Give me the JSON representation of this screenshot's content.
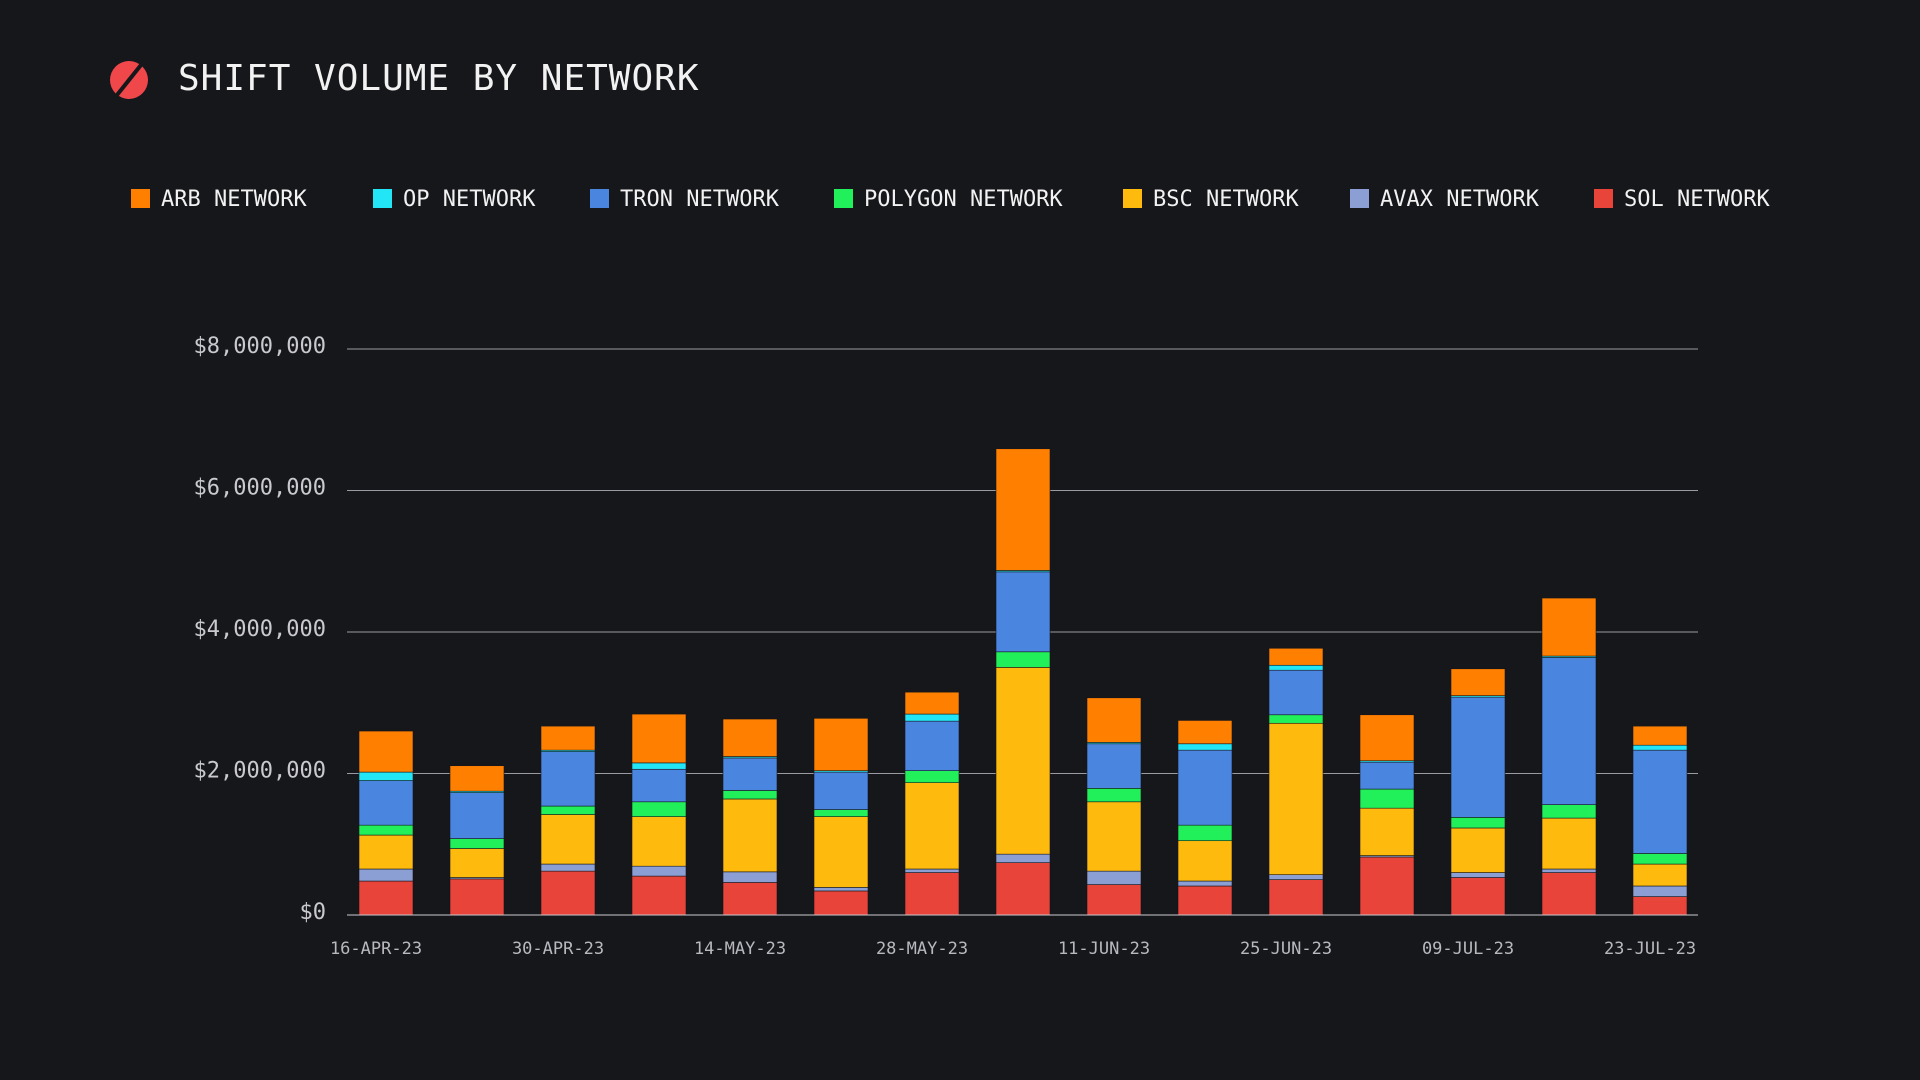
{
  "chart_data": {
    "type": "stacked-bar",
    "title": "SHIFT VOLUME BY NETWORK",
    "categories": [
      "16-APR-23",
      null,
      "30-APR-23",
      null,
      "14-MAY-23",
      null,
      "28-MAY-23",
      null,
      "11-JUN-23",
      null,
      "25-JUN-23",
      null,
      "09-JUL-23",
      null,
      "23-JUL-23"
    ],
    "series": [
      {
        "name": "ARB NETWORK",
        "color": "#ff7f00",
        "values": [
          580000,
          360000,
          340000,
          690000,
          530000,
          740000,
          310000,
          1720000,
          630000,
          330000,
          240000,
          650000,
          380000,
          820000,
          270000
        ]
      },
      {
        "name": "OP NETWORK",
        "color": "#22e5f5",
        "values": [
          120000,
          20000,
          20000,
          90000,
          20000,
          20000,
          100000,
          20000,
          20000,
          90000,
          70000,
          20000,
          20000,
          20000,
          70000
        ]
      },
      {
        "name": "TRON NETWORK",
        "color": "#4a86e0",
        "values": [
          630000,
          650000,
          770000,
          460000,
          460000,
          530000,
          700000,
          1130000,
          630000,
          1060000,
          630000,
          380000,
          1700000,
          2080000,
          1460000
        ]
      },
      {
        "name": "POLYGON NETWORK",
        "color": "#22f05a",
        "values": [
          140000,
          140000,
          120000,
          210000,
          120000,
          100000,
          170000,
          220000,
          190000,
          220000,
          120000,
          270000,
          150000,
          190000,
          150000
        ]
      },
      {
        "name": "BSC NETWORK",
        "color": "#ffbb0d",
        "values": [
          480000,
          410000,
          700000,
          700000,
          1030000,
          1000000,
          1220000,
          2640000,
          980000,
          570000,
          2140000,
          670000,
          630000,
          720000,
          310000
        ]
      },
      {
        "name": "AVAX NETWORK",
        "color": "#8b9fd4",
        "values": [
          170000,
          20000,
          100000,
          140000,
          150000,
          50000,
          50000,
          120000,
          190000,
          70000,
          70000,
          20000,
          70000,
          50000,
          150000
        ]
      },
      {
        "name": "SOL NETWORK",
        "color": "#e8443a",
        "values": [
          480000,
          510000,
          620000,
          550000,
          460000,
          340000,
          600000,
          740000,
          430000,
          410000,
          500000,
          820000,
          530000,
          600000,
          260000
        ]
      }
    ],
    "ylim": [
      0,
      8000000
    ],
    "yticks": [
      {
        "value": 0,
        "label": "$0"
      },
      {
        "value": 2000000,
        "label": "$2,000,000"
      },
      {
        "value": 4000000,
        "label": "$4,000,000"
      },
      {
        "value": 6000000,
        "label": "$6,000,000"
      },
      {
        "value": 8000000,
        "label": "$8,000,000"
      }
    ],
    "grid": true,
    "legend": "top"
  }
}
